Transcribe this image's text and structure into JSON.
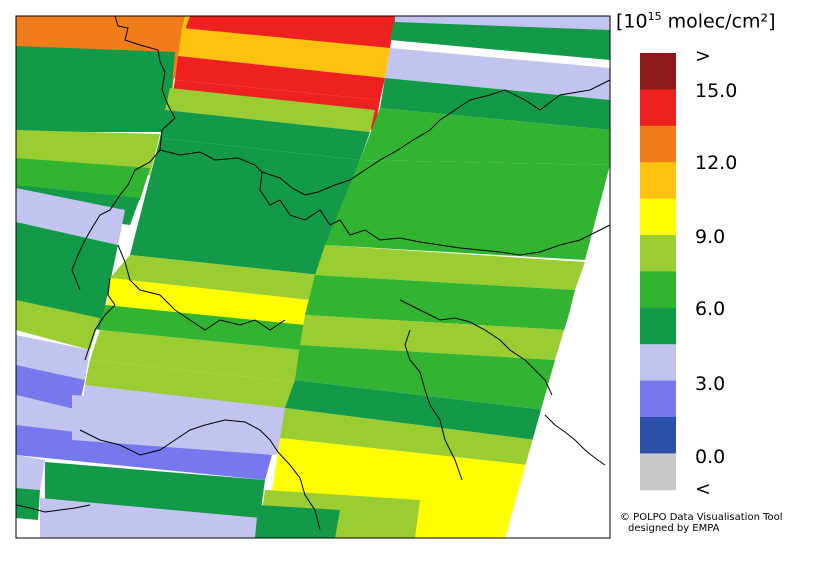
{
  "colorbar": {
    "units_prefix": "[10",
    "units_exponent": "15",
    "units_suffix": " molec/cm²]",
    "swatches": [
      "#8b1a1a",
      "#ee2020",
      "#f07d1a",
      "#ffc20e",
      "#ffff00",
      "#9acd32",
      "#32b432",
      "#129a48",
      "#c3c3f0",
      "#7878ee",
      "#2c4fa8",
      "#c8c8c8"
    ],
    "labels": {
      "over": ">",
      "v15": "15.0",
      "v12": "12.0",
      "v9": "9.0",
      "v6": "6.0",
      "v3": "3.0",
      "v0": "0.0",
      "under": "<"
    }
  },
  "credit": {
    "line1": "© POLPO Data Visualisation Tool",
    "line2": "designed by EMPA"
  }
}
